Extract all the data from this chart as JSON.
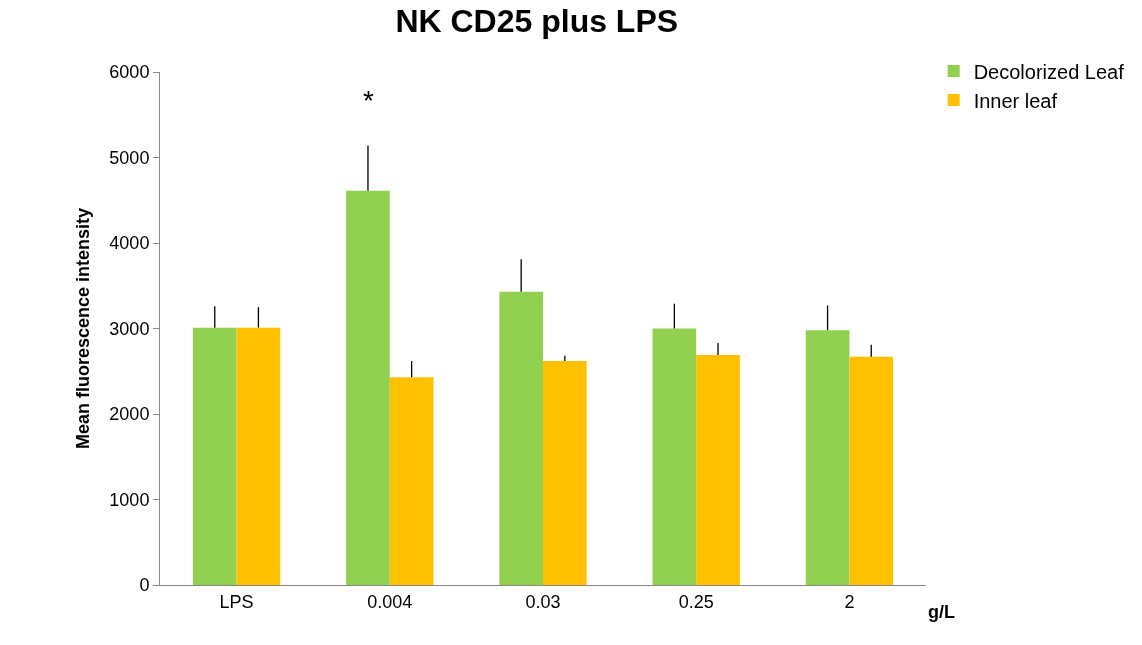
{
  "chart_data": {
    "type": "bar",
    "title": "NK CD25 plus LPS",
    "xlabel": "g/L",
    "ylabel": "Mean fluorescence intensity",
    "categories": [
      "LPS",
      "0.004",
      "0.03",
      "0.25",
      "2"
    ],
    "series": [
      {
        "name": "Decolorized Leaf",
        "color": "#92d050",
        "values": [
          3010,
          4610,
          3430,
          3000,
          2980
        ],
        "errors": [
          [
            3010,
            3260
          ],
          [
            4610,
            5140
          ],
          [
            3430,
            3810
          ],
          [
            3000,
            3290
          ],
          [
            2980,
            3270
          ]
        ]
      },
      {
        "name": "Inner leaf",
        "color": "#ffc000",
        "values": [
          3010,
          2430,
          2620,
          2690,
          2670
        ],
        "errors": [
          [
            3010,
            3250
          ],
          [
            2430,
            2620
          ],
          [
            2620,
            2680
          ],
          [
            2690,
            2830
          ],
          [
            2670,
            2810
          ]
        ]
      }
    ],
    "annotations": [
      "*"
    ],
    "ylim": [
      0,
      6000
    ],
    "yticks": [
      0,
      1000,
      2000,
      3000,
      4000,
      5000,
      6000
    ],
    "legend": "top right"
  }
}
